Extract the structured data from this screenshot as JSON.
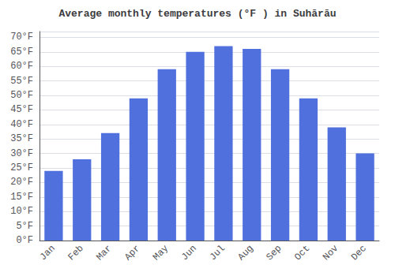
{
  "chart_data": {
    "type": "bar",
    "title": "Average monthly temperatures (°F ) in Suhărău",
    "categories": [
      "Jan",
      "Feb",
      "Mar",
      "Apr",
      "May",
      "Jun",
      "Jul",
      "Aug",
      "Sep",
      "Oct",
      "Nov",
      "Dec"
    ],
    "values": [
      24,
      28,
      37,
      49,
      59,
      65,
      67,
      66,
      59,
      49,
      39,
      30
    ],
    "ylim": [
      0,
      72
    ],
    "yticks": [
      {
        "value": 0,
        "label": "0°F"
      },
      {
        "value": 5,
        "label": "5°F"
      },
      {
        "value": 10,
        "label": "10°F"
      },
      {
        "value": 15,
        "label": "15°F"
      },
      {
        "value": 20,
        "label": "20°F"
      },
      {
        "value": 25,
        "label": "25°F"
      },
      {
        "value": 30,
        "label": "30°F"
      },
      {
        "value": 35,
        "label": "35°F"
      },
      {
        "value": 40,
        "label": "40°F"
      },
      {
        "value": 45,
        "label": "45°F"
      },
      {
        "value": 50,
        "label": "50°F"
      },
      {
        "value": 55,
        "label": "55°F"
      },
      {
        "value": 60,
        "label": "60°F"
      },
      {
        "value": 65,
        "label": "65°F"
      },
      {
        "value": 70,
        "label": "70°F"
      }
    ],
    "grid": true
  }
}
